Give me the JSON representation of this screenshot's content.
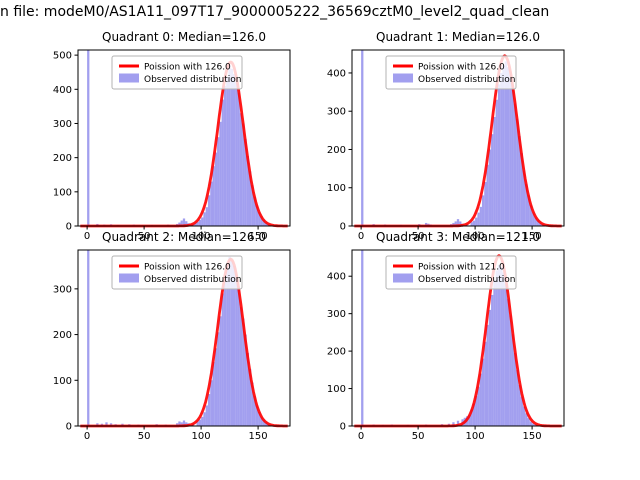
{
  "figure": {
    "title": "n file: modeM0/AS1A11_097T17_9000005222_36569cztM0_level2_quad_clean"
  },
  "colors": {
    "hist": "#7b76e8",
    "curve": "#ff0000",
    "axis": "#000000",
    "legend_border": "#b3b3b3",
    "background": "#ffffff"
  },
  "chart_data": [
    {
      "type": "histogram",
      "title": "Quadrant 0: Median=126.0",
      "legend": [
        "Poission with 126.0",
        "Observed distribution"
      ],
      "poisson_lambda": 126.0,
      "curve_peak": 480,
      "xlim": [
        -8,
        178
      ],
      "ylim": [
        0,
        515
      ],
      "xticks": [
        0,
        50,
        100,
        150
      ],
      "yticks": [
        0,
        100,
        200,
        300,
        400,
        500
      ],
      "bin_width": 2,
      "bars": [
        [
          0,
          515
        ],
        [
          8,
          6
        ],
        [
          14,
          4
        ],
        [
          20,
          5
        ],
        [
          26,
          3
        ],
        [
          40,
          4
        ],
        [
          56,
          3
        ],
        [
          70,
          4
        ],
        [
          78,
          6
        ],
        [
          80,
          10
        ],
        [
          82,
          16
        ],
        [
          84,
          22
        ],
        [
          86,
          14
        ],
        [
          88,
          8
        ],
        [
          90,
          6
        ],
        [
          92,
          5
        ],
        [
          94,
          8
        ],
        [
          96,
          12
        ],
        [
          98,
          18
        ],
        [
          100,
          25
        ],
        [
          102,
          40
        ],
        [
          104,
          55
        ],
        [
          106,
          90
        ],
        [
          108,
          130
        ],
        [
          110,
          175
        ],
        [
          112,
          215
        ],
        [
          114,
          260
        ],
        [
          116,
          305
        ],
        [
          118,
          370
        ],
        [
          120,
          410
        ],
        [
          122,
          435
        ],
        [
          124,
          470
        ],
        [
          126,
          460
        ],
        [
          128,
          445
        ],
        [
          130,
          420
        ],
        [
          132,
          390
        ],
        [
          134,
          330
        ],
        [
          136,
          300
        ],
        [
          138,
          255
        ],
        [
          140,
          205
        ],
        [
          142,
          160
        ],
        [
          144,
          120
        ],
        [
          146,
          85
        ],
        [
          148,
          60
        ],
        [
          150,
          40
        ],
        [
          152,
          28
        ],
        [
          154,
          18
        ],
        [
          156,
          10
        ],
        [
          158,
          6
        ],
        [
          160,
          4
        ],
        [
          162,
          2
        ]
      ]
    },
    {
      "type": "histogram",
      "title": "Quadrant 1: Median=126.0",
      "legend": [
        "Poission with 126.0",
        "Observed distribution"
      ],
      "poisson_lambda": 126.0,
      "curve_peak": 445,
      "xlim": [
        -8,
        178
      ],
      "ylim": [
        0,
        460
      ],
      "xticks": [
        0,
        50,
        100,
        150
      ],
      "yticks": [
        0,
        100,
        200,
        300,
        400
      ],
      "bin_width": 2,
      "bars": [
        [
          0,
          460
        ],
        [
          10,
          5
        ],
        [
          20,
          4
        ],
        [
          34,
          3
        ],
        [
          50,
          5
        ],
        [
          56,
          8
        ],
        [
          58,
          6
        ],
        [
          60,
          4
        ],
        [
          78,
          5
        ],
        [
          80,
          8
        ],
        [
          82,
          12
        ],
        [
          84,
          18
        ],
        [
          86,
          12
        ],
        [
          88,
          6
        ],
        [
          92,
          5
        ],
        [
          96,
          10
        ],
        [
          98,
          14
        ],
        [
          100,
          22
        ],
        [
          102,
          35
        ],
        [
          104,
          50
        ],
        [
          106,
          80
        ],
        [
          108,
          115
        ],
        [
          110,
          160
        ],
        [
          112,
          200
        ],
        [
          114,
          240
        ],
        [
          116,
          285
        ],
        [
          118,
          330
        ],
        [
          120,
          370
        ],
        [
          122,
          400
        ],
        [
          124,
          420
        ],
        [
          126,
          430
        ],
        [
          128,
          415
        ],
        [
          130,
          395
        ],
        [
          132,
          360
        ],
        [
          134,
          320
        ],
        [
          136,
          280
        ],
        [
          138,
          235
        ],
        [
          140,
          190
        ],
        [
          142,
          145
        ],
        [
          144,
          110
        ],
        [
          146,
          80
        ],
        [
          148,
          55
        ],
        [
          150,
          35
        ],
        [
          152,
          22
        ],
        [
          154,
          14
        ],
        [
          156,
          8
        ],
        [
          158,
          5
        ],
        [
          160,
          3
        ]
      ]
    },
    {
      "type": "histogram",
      "title": "Quadrant 2: Median=126.0",
      "legend": [
        "Poission with 126.0",
        "Observed distribution"
      ],
      "poisson_lambda": 126.0,
      "curve_peak": 365,
      "xlim": [
        -8,
        178
      ],
      "ylim": [
        0,
        385
      ],
      "xticks": [
        0,
        50,
        100,
        150
      ],
      "yticks": [
        0,
        100,
        200,
        300
      ],
      "bin_width": 2,
      "bars": [
        [
          0,
          385
        ],
        [
          8,
          6
        ],
        [
          12,
          5
        ],
        [
          16,
          8
        ],
        [
          20,
          6
        ],
        [
          24,
          4
        ],
        [
          30,
          5
        ],
        [
          36,
          4
        ],
        [
          44,
          3
        ],
        [
          60,
          4
        ],
        [
          68,
          3
        ],
        [
          78,
          6
        ],
        [
          80,
          10
        ],
        [
          82,
          8
        ],
        [
          84,
          12
        ],
        [
          86,
          8
        ],
        [
          88,
          6
        ],
        [
          92,
          5
        ],
        [
          96,
          10
        ],
        [
          98,
          14
        ],
        [
          100,
          20
        ],
        [
          102,
          30
        ],
        [
          104,
          45
        ],
        [
          106,
          70
        ],
        [
          108,
          100
        ],
        [
          110,
          140
        ],
        [
          112,
          170
        ],
        [
          114,
          205
        ],
        [
          116,
          240
        ],
        [
          118,
          290
        ],
        [
          120,
          320
        ],
        [
          122,
          345
        ],
        [
          124,
          370
        ],
        [
          126,
          360
        ],
        [
          128,
          350
        ],
        [
          130,
          330
        ],
        [
          132,
          305
        ],
        [
          134,
          260
        ],
        [
          136,
          235
        ],
        [
          138,
          200
        ],
        [
          140,
          160
        ],
        [
          142,
          125
        ],
        [
          144,
          95
        ],
        [
          146,
          65
        ],
        [
          148,
          45
        ],
        [
          150,
          30
        ],
        [
          152,
          20
        ],
        [
          154,
          13
        ],
        [
          156,
          8
        ],
        [
          158,
          5
        ],
        [
          160,
          3
        ]
      ]
    },
    {
      "type": "histogram",
      "title": "Quadrant 3: Median=121.0",
      "legend": [
        "Poission with 121.0",
        "Observed distribution"
      ],
      "poisson_lambda": 121.0,
      "curve_peak": 455,
      "xlim": [
        -8,
        178
      ],
      "ylim": [
        0,
        470
      ],
      "xticks": [
        0,
        50,
        100,
        150
      ],
      "yticks": [
        0,
        100,
        200,
        300,
        400
      ],
      "bin_width": 2,
      "bars": [
        [
          0,
          470
        ],
        [
          10,
          4
        ],
        [
          18,
          3
        ],
        [
          26,
          4
        ],
        [
          40,
          3
        ],
        [
          56,
          4
        ],
        [
          70,
          5
        ],
        [
          76,
          6
        ],
        [
          80,
          10
        ],
        [
          84,
          14
        ],
        [
          88,
          18
        ],
        [
          90,
          22
        ],
        [
          92,
          26
        ],
        [
          94,
          30
        ],
        [
          96,
          45
        ],
        [
          98,
          60
        ],
        [
          100,
          80
        ],
        [
          102,
          105
        ],
        [
          104,
          140
        ],
        [
          106,
          180
        ],
        [
          108,
          225
        ],
        [
          110,
          270
        ],
        [
          112,
          310
        ],
        [
          114,
          350
        ],
        [
          116,
          390
        ],
        [
          118,
          415
        ],
        [
          120,
          430
        ],
        [
          122,
          425
        ],
        [
          124,
          410
        ],
        [
          126,
          380
        ],
        [
          128,
          340
        ],
        [
          130,
          295
        ],
        [
          132,
          245
        ],
        [
          134,
          195
        ],
        [
          136,
          150
        ],
        [
          138,
          110
        ],
        [
          140,
          78
        ],
        [
          142,
          52
        ],
        [
          144,
          34
        ],
        [
          146,
          21
        ],
        [
          148,
          12
        ],
        [
          150,
          7
        ],
        [
          152,
          4
        ]
      ]
    }
  ]
}
